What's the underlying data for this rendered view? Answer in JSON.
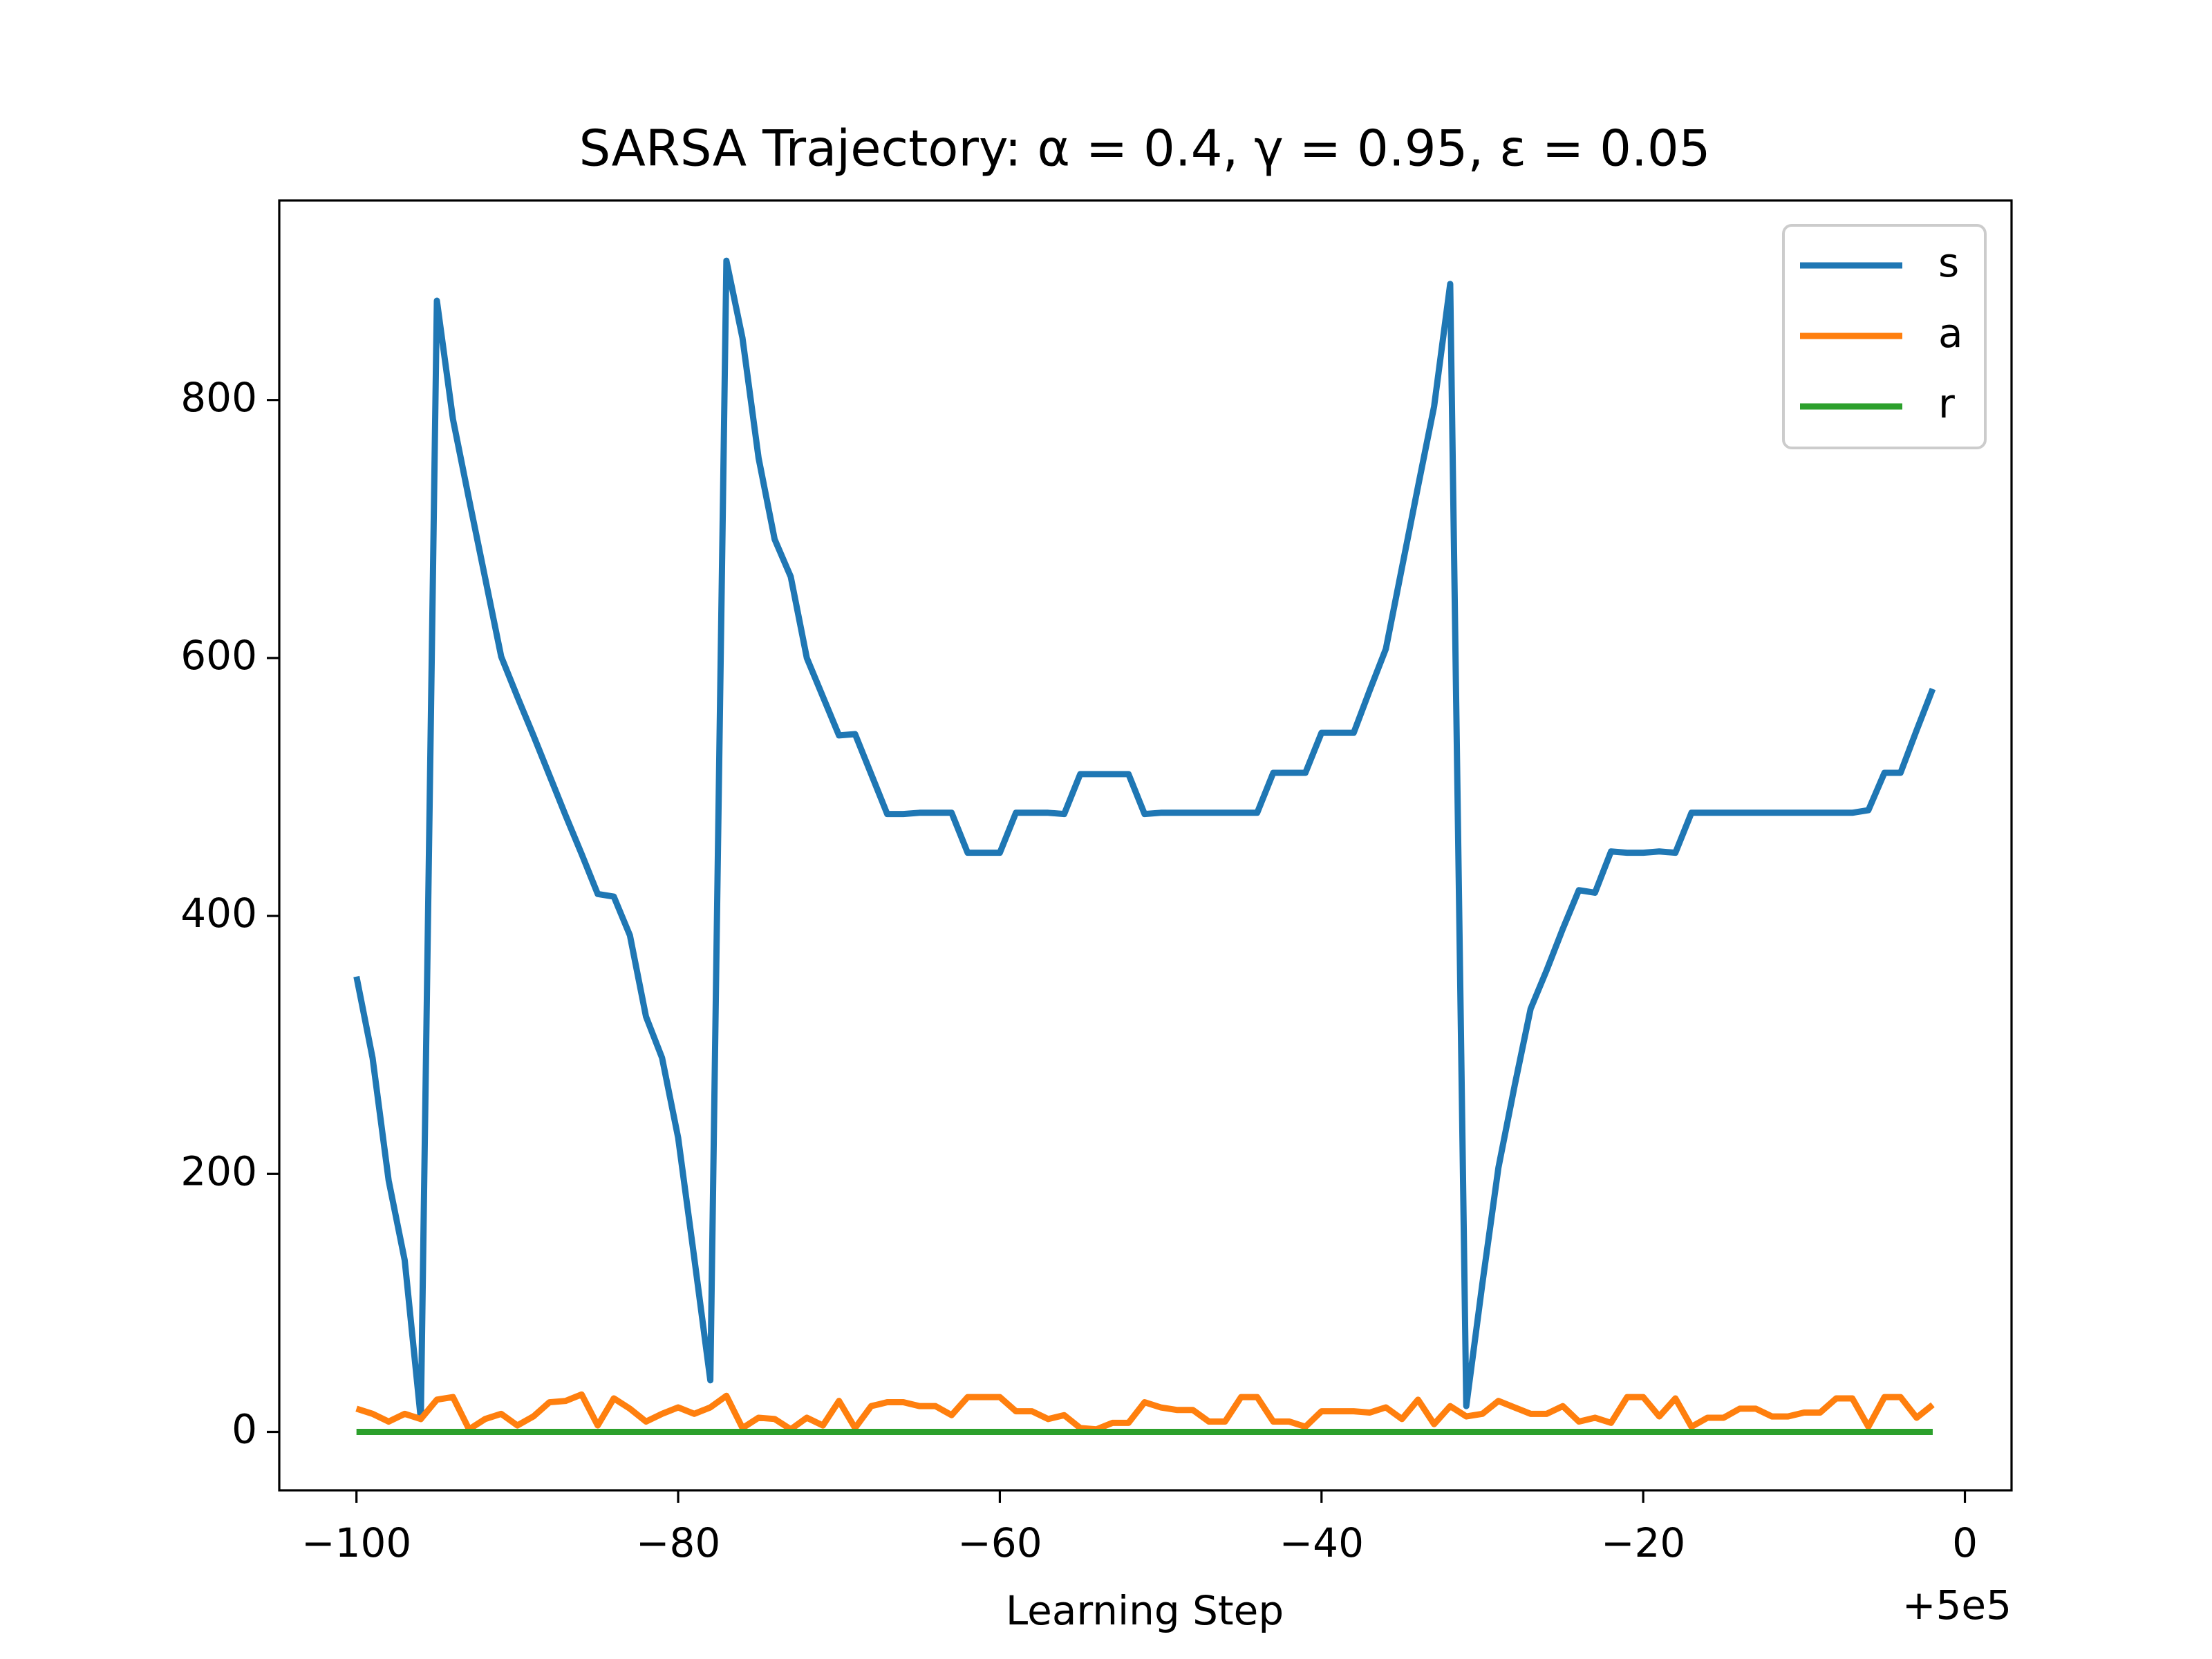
{
  "chart_data": {
    "type": "line",
    "title": "SARSA Trajectory: α = 0.4, γ = 0.95, ε = 0.05",
    "x_label": "Learning Step",
    "x_offset_text": "+5e5",
    "x": [
      499900,
      499901,
      499902,
      499903,
      499904,
      499905,
      499906,
      499907,
      499908,
      499909,
      499910,
      499911,
      499912,
      499913,
      499914,
      499915,
      499916,
      499917,
      499918,
      499919,
      499920,
      499921,
      499922,
      499923,
      499924,
      499925,
      499926,
      499927,
      499928,
      499929,
      499930,
      499931,
      499932,
      499933,
      499934,
      499935,
      499936,
      499937,
      499938,
      499939,
      499940,
      499941,
      499942,
      499943,
      499944,
      499945,
      499946,
      499947,
      499948,
      499949,
      499950,
      499951,
      499952,
      499953,
      499954,
      499955,
      499956,
      499957,
      499958,
      499959,
      499960,
      499961,
      499962,
      499963,
      499964,
      499965,
      499966,
      499967,
      499968,
      499969,
      499970,
      499971,
      499972,
      499973,
      499974,
      499975,
      499976,
      499977,
      499978,
      499979,
      499980,
      499981,
      499982,
      499983,
      499984,
      499985,
      499986,
      499987,
      499988,
      499989,
      499990,
      499991,
      499992,
      499993,
      499994,
      499995,
      499996,
      499997,
      499998
    ],
    "series": [
      {
        "name": "s",
        "color": "#1f77b4",
        "values": [
          353,
          290,
          195,
          133,
          10,
          877,
          785,
          723,
          662,
          601,
          570,
          540,
          509,
          478,
          448,
          417,
          415,
          385,
          322,
          290,
          228,
          135,
          40,
          908,
          848,
          755,
          692,
          663,
          600,
          570,
          540,
          541,
          510,
          479,
          479,
          480,
          480,
          480,
          449,
          449,
          449,
          480,
          480,
          480,
          479,
          510,
          510,
          510,
          510,
          479,
          480,
          480,
          480,
          480,
          480,
          480,
          480,
          511,
          511,
          511,
          542,
          542,
          542,
          575,
          607,
          670,
          733,
          795,
          890,
          20,
          115,
          205,
          268,
          328,
          358,
          390,
          420,
          418,
          450,
          449,
          449,
          450,
          449,
          480,
          480,
          480,
          480,
          480,
          480,
          480,
          480,
          480,
          480,
          480,
          482,
          511,
          511,
          544,
          576
        ]
      },
      {
        "name": "a",
        "color": "#ff7f0e",
        "values": [
          18,
          14,
          8,
          14,
          10,
          25,
          27,
          2,
          10,
          14,
          5,
          12,
          23,
          24,
          29,
          5,
          26,
          18,
          8,
          14,
          19,
          14,
          19,
          28,
          3,
          11,
          10,
          2,
          11,
          5,
          24,
          3,
          20,
          23,
          23,
          20,
          20,
          13,
          27,
          27,
          27,
          16,
          16,
          10,
          13,
          3,
          2,
          7,
          7,
          23,
          19,
          17,
          17,
          8,
          8,
          27,
          27,
          8,
          8,
          4,
          16,
          16,
          16,
          15,
          19,
          10,
          25,
          6,
          20,
          12,
          14,
          24,
          19,
          14,
          14,
          20,
          8,
          11,
          7,
          27,
          27,
          12,
          26,
          4,
          11,
          11,
          18,
          18,
          12,
          12,
          15,
          15,
          26,
          26,
          4,
          27,
          27,
          11,
          21
        ]
      },
      {
        "name": "r",
        "color": "#2ca02c",
        "values": [
          0,
          0,
          0,
          0,
          0,
          0,
          0,
          0,
          0,
          0,
          0,
          0,
          0,
          0,
          0,
          0,
          0,
          0,
          0,
          0,
          0,
          0,
          0,
          0,
          0,
          0,
          0,
          0,
          0,
          0,
          0,
          0,
          0,
          0,
          0,
          0,
          0,
          0,
          0,
          0,
          0,
          0,
          0,
          0,
          0,
          0,
          0,
          0,
          0,
          0,
          0,
          0,
          0,
          0,
          0,
          0,
          0,
          0,
          0,
          0,
          0,
          0,
          0,
          0,
          0,
          0,
          0,
          0,
          0,
          0,
          0,
          0,
          0,
          0,
          0,
          0,
          0,
          0,
          0,
          0,
          0,
          0,
          0,
          0,
          0,
          0,
          0,
          0,
          0,
          0,
          0,
          0,
          0,
          0,
          0,
          0,
          0,
          0,
          0
        ]
      }
    ],
    "xlim": [
      499895.2,
      500002.9
    ],
    "xticks": [
      {
        "value": 499900,
        "label": "−100"
      },
      {
        "value": 499920,
        "label": "−80"
      },
      {
        "value": 499940,
        "label": "−60"
      },
      {
        "value": 499960,
        "label": "−40"
      },
      {
        "value": 499980,
        "label": "−20"
      },
      {
        "value": 500000,
        "label": "0"
      }
    ],
    "ylim": [
      -45.3,
      954.7
    ],
    "yticks": [
      0,
      200,
      400,
      600,
      800
    ],
    "legend": "upper right",
    "grid": false
  }
}
